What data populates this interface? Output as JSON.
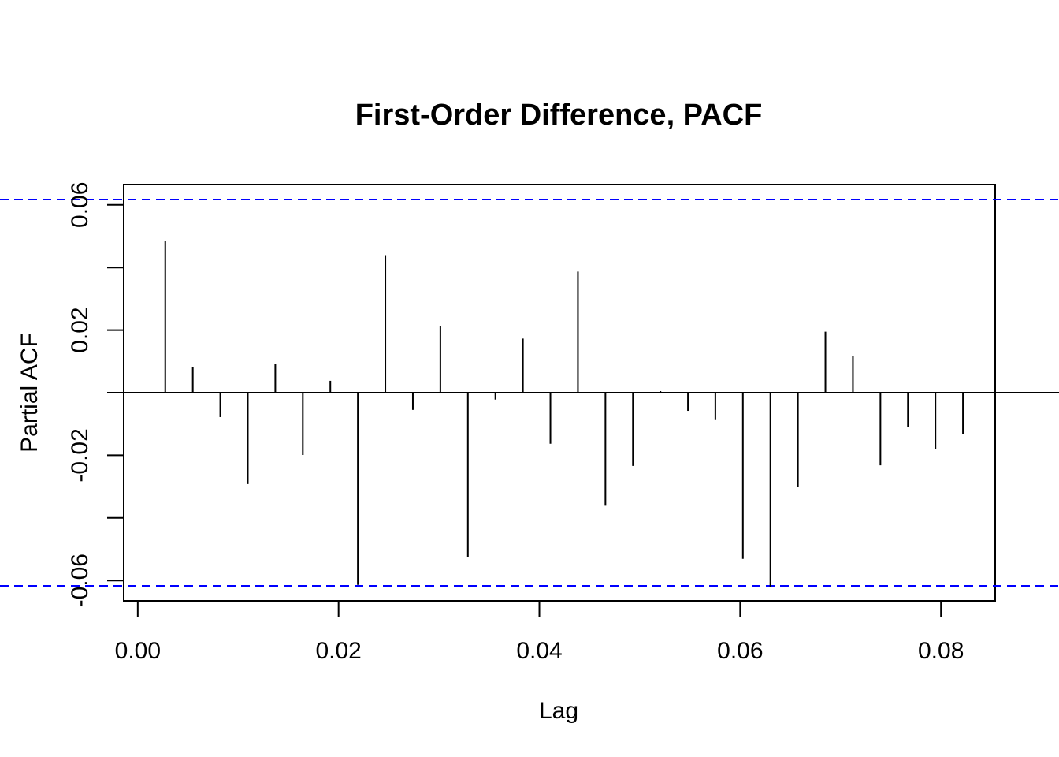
{
  "chart_data": {
    "type": "bar",
    "subtype": "pacf-spikes",
    "title": "First-Order Difference, PACF",
    "xlabel": "Lag",
    "ylabel": "Partial ACF",
    "xlim": [
      -0.0014,
      0.0854
    ],
    "ylim": [
      -0.0665,
      0.0665
    ],
    "x_ticks": [
      0.0,
      0.02,
      0.04,
      0.06,
      0.08
    ],
    "x_tick_labels": [
      "0.00",
      "0.02",
      "0.04",
      "0.06",
      "0.08"
    ],
    "y_ticks": [
      -0.06,
      -0.04,
      -0.02,
      0.0,
      0.02,
      0.04,
      0.06
    ],
    "y_tick_labels": [
      "-0.06",
      "",
      "-0.02",
      "",
      "0.02",
      "",
      "0.06"
    ],
    "confidence_bound": 0.0617,
    "colors": {
      "spike": "#000000",
      "bound": "#0000ff",
      "zero_line": "#000000"
    },
    "grid": false,
    "series": [
      {
        "x": [
          0.00274,
          0.00548,
          0.00822,
          0.01096,
          0.0137,
          0.01644,
          0.01918,
          0.02192,
          0.02466,
          0.0274,
          0.03014,
          0.03288,
          0.03562,
          0.03836,
          0.0411,
          0.04384,
          0.04658,
          0.04932,
          0.05206,
          0.0548,
          0.05753,
          0.06027,
          0.06301,
          0.06575,
          0.06849,
          0.07123,
          0.07397,
          0.07671,
          0.07945,
          0.08219
        ],
        "values": [
          0.0485,
          0.0081,
          -0.0078,
          -0.0292,
          0.0091,
          -0.0199,
          0.0038,
          -0.0614,
          0.0437,
          -0.0055,
          0.0212,
          -0.0524,
          -0.0022,
          0.0173,
          -0.0163,
          0.0387,
          -0.0361,
          -0.0234,
          0.0005,
          -0.0058,
          -0.0085,
          -0.0531,
          -0.0621,
          -0.0301,
          0.0195,
          0.0118,
          -0.0232,
          -0.011,
          -0.0181,
          -0.0133
        ]
      }
    ]
  }
}
